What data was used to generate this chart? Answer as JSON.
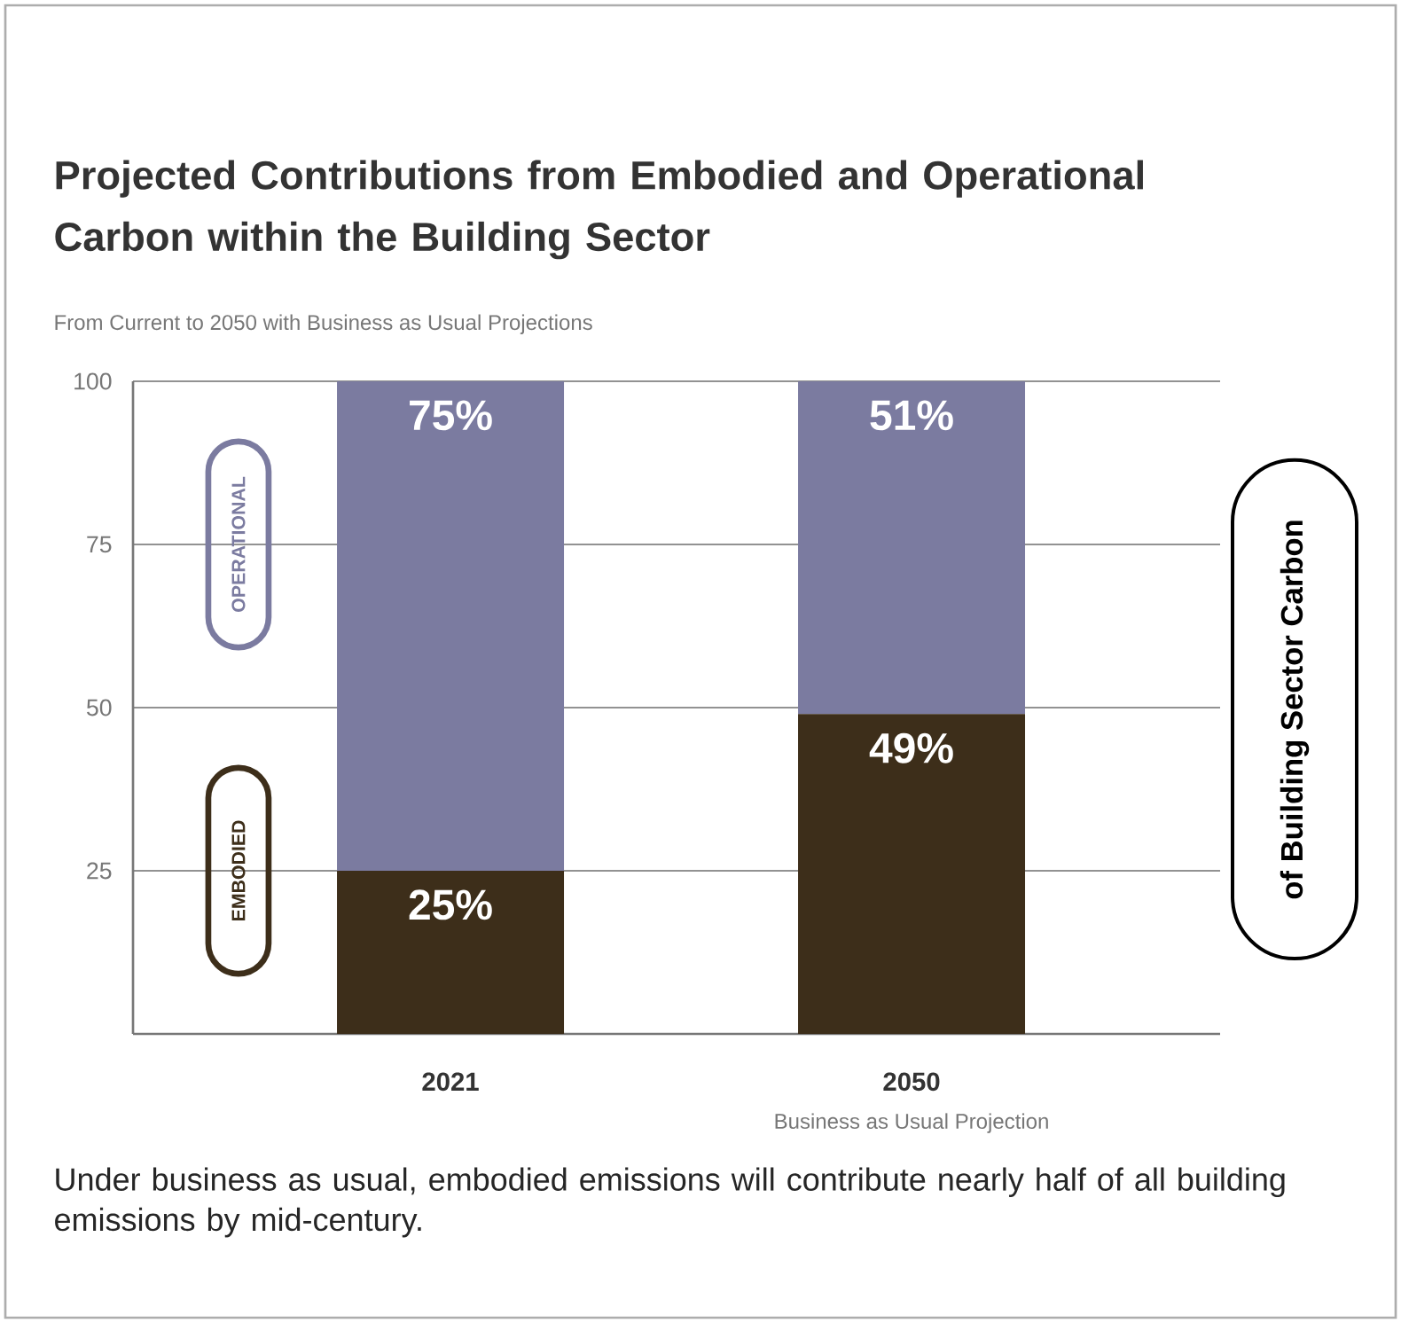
{
  "chart_data": {
    "type": "bar",
    "stacked": true,
    "title": "Projected Contributions from Embodied and Operational Carbon within the Building Sector",
    "subtitle": "From Current to 2050 with Business as Usual Projections",
    "ylabel": "of Building Sector Carbon",
    "categories": [
      "2021",
      "2050"
    ],
    "series": [
      {
        "name": "EMBODIED",
        "color": "#3d2e1a",
        "values": [
          25,
          49
        ],
        "value_labels": [
          "25%",
          "49%"
        ]
      },
      {
        "name": "OPERATIONAL",
        "color": "#7b7ba0",
        "values": [
          75,
          51
        ],
        "value_labels": [
          "75%",
          "51%"
        ]
      }
    ],
    "ylim": [
      0,
      100
    ],
    "yticks": [
      25,
      50,
      75,
      100
    ],
    "grid": "y",
    "legend": "left",
    "annotations": [
      "Business as Usual Projection",
      "Under business as usual, embodied emissions will contribute nearly half of all building emissions by mid-century."
    ]
  }
}
